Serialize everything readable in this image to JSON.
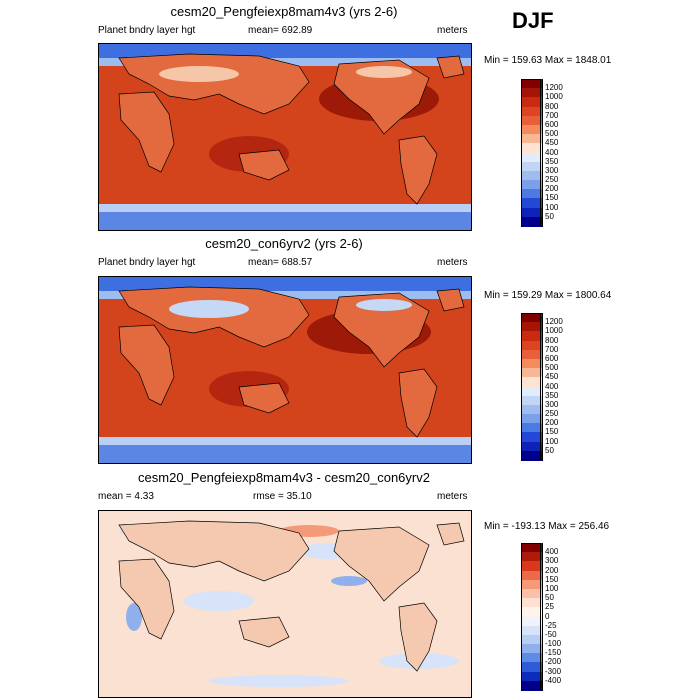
{
  "season": "DJF",
  "panels": [
    {
      "title": "cesm20_Pengfeiexp8mam4v3 (yrs 2-6)",
      "left_label": "Planet bndry layer hgt",
      "center_label": "mean= 692.89",
      "right_label": "meters",
      "minmax": "Min = 159.63 Max = 1848.01",
      "colorbar": {
        "labels": [
          "1200",
          "1000",
          "800",
          "700",
          "600",
          "500",
          "450",
          "400",
          "350",
          "300",
          "250",
          "200",
          "150",
          "100",
          "50"
        ],
        "colors": [
          "#800000",
          "#a51505",
          "#c92a10",
          "#dd4422",
          "#e8603a",
          "#f28b5e",
          "#f7b794",
          "#fde4d2",
          "#e3ecfa",
          "#c3d5f5",
          "#a0bcef",
          "#7ba0ea",
          "#4b7ae3",
          "#2448d6",
          "#0c22b8",
          "#00008a"
        ]
      },
      "ocean_color": "#d4441c",
      "land_color": "#e36a3e"
    },
    {
      "title": "cesm20_con6yrv2 (yrs 2-6)",
      "left_label": "Planet bndry layer hgt",
      "center_label": "mean= 688.57",
      "right_label": "meters",
      "minmax": "Min = 159.29 Max = 1800.64",
      "colorbar": {
        "labels": [
          "1200",
          "1000",
          "800",
          "700",
          "600",
          "500",
          "450",
          "400",
          "350",
          "300",
          "250",
          "200",
          "150",
          "100",
          "50"
        ],
        "colors": [
          "#800000",
          "#a51505",
          "#c92a10",
          "#dd4422",
          "#e8603a",
          "#f28b5e",
          "#f7b794",
          "#fde4d2",
          "#e3ecfa",
          "#c3d5f5",
          "#a0bcef",
          "#7ba0ea",
          "#4b7ae3",
          "#2448d6",
          "#0c22b8",
          "#00008a"
        ]
      },
      "ocean_color": "#d4441c",
      "land_color": "#e36a3e"
    },
    {
      "title": "cesm20_Pengfeiexp8mam4v3 - cesm20_con6yrv2",
      "left_label": "mean =   4.33",
      "center_label": "rmse =  35.10",
      "right_label": "meters",
      "minmax": "Min = -193.13 Max = 256.46",
      "colorbar": {
        "labels": [
          "400",
          "300",
          "200",
          "150",
          "100",
          "50",
          "25",
          "0",
          "-25",
          "-50",
          "-100",
          "-150",
          "-200",
          "-300",
          "-400"
        ],
        "colors": [
          "#800000",
          "#b01a0a",
          "#d8391a",
          "#ec6a48",
          "#f59a78",
          "#fac0a8",
          "#fde0d2",
          "#fff3ec",
          "#eef3fc",
          "#d6e3f8",
          "#b7cdf3",
          "#8fb0ed",
          "#5f8ae6",
          "#2e5cd9",
          "#0d2cbc",
          "#00008a"
        ]
      },
      "ocean_color": "#fbe1d2",
      "land_color": "#f5c9b0"
    }
  ]
}
